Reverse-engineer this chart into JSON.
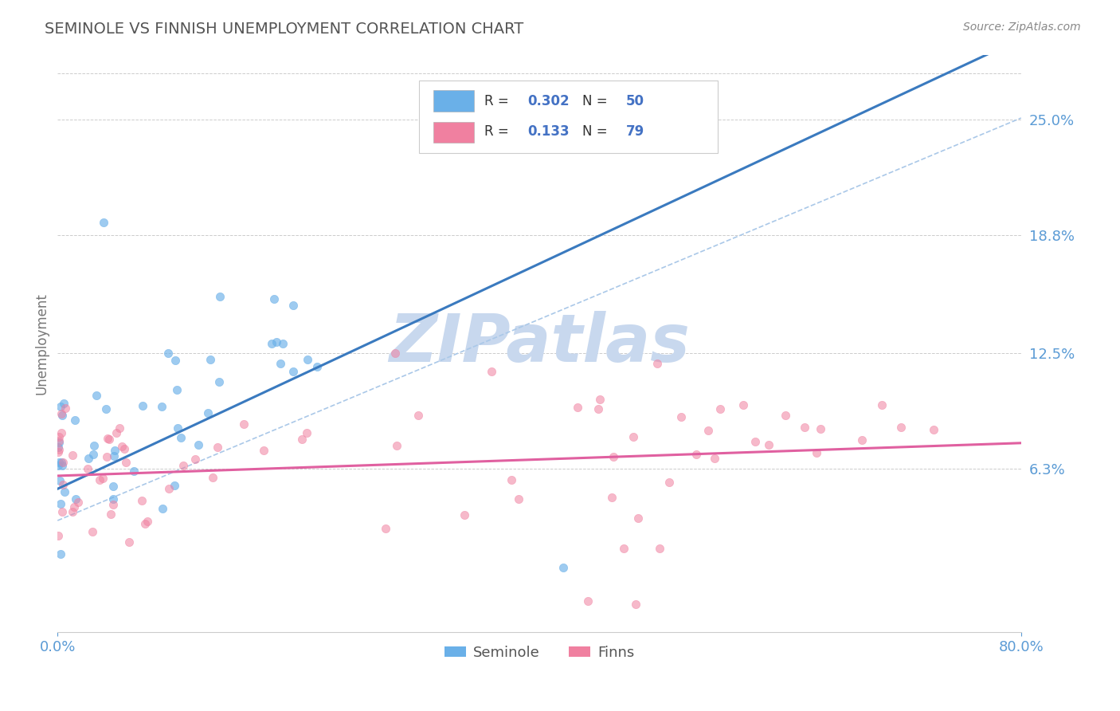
{
  "title": "SEMINOLE VS FINNISH UNEMPLOYMENT CORRELATION CHART",
  "source_text": "Source: ZipAtlas.com",
  "ylabel": "Unemployment",
  "xlim": [
    0.0,
    0.8
  ],
  "ylim": [
    -0.025,
    0.285
  ],
  "yticks": [
    0.063,
    0.125,
    0.188,
    0.25
  ],
  "ytick_labels": [
    "6.3%",
    "12.5%",
    "18.8%",
    "25.0%"
  ],
  "xticks": [
    0.0,
    0.8
  ],
  "xtick_labels": [
    "0.0%",
    "80.0%"
  ],
  "seminole_color": "#6ab0e8",
  "finns_color": "#f080a0",
  "seminole_R": 0.302,
  "seminole_N": 50,
  "finns_R": 0.133,
  "finns_N": 79,
  "watermark": "ZIPatlas",
  "watermark_color": "#c8d8ee",
  "background_color": "#ffffff",
  "grid_color": "#cccccc",
  "title_color": "#555555",
  "axis_label_color": "#777777",
  "tick_color": "#5b9bd5",
  "legend_text_color": "#333333",
  "legend_N_color": "#4472c4",
  "seminole_line_color": "#3a7abf",
  "finns_line_color": "#e060a0",
  "dash_line_color": "#aac8e8"
}
